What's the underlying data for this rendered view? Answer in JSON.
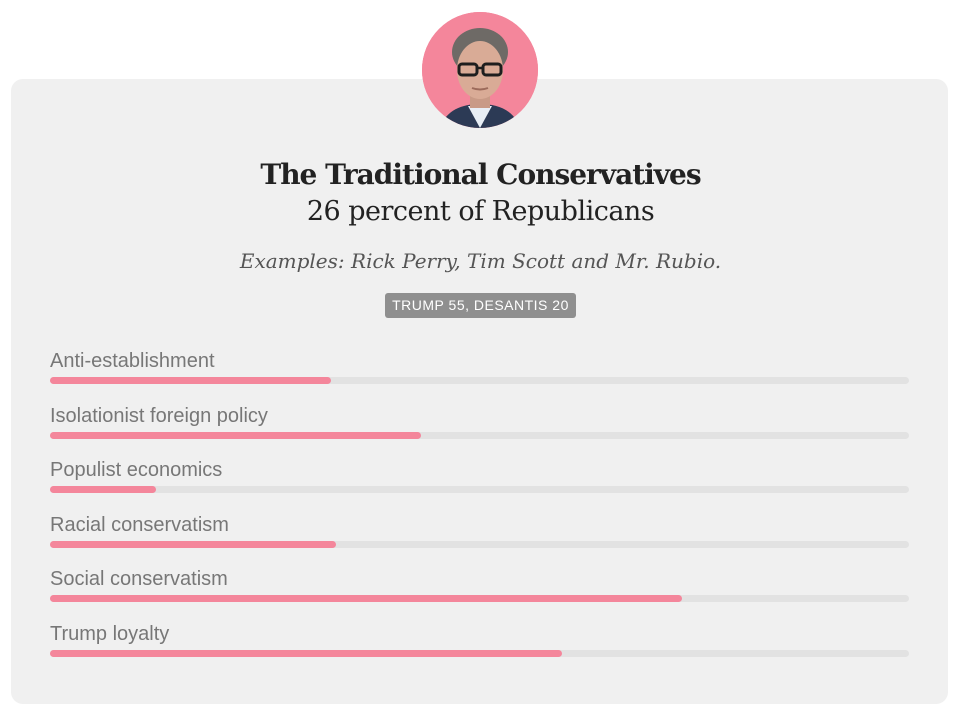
{
  "group": {
    "title": "The Traditional Conservatives",
    "subtitle": "26 percent of Republicans",
    "examples": "Examples: Rick Perry, Tim Scott and Mr. Rubio.",
    "badge": "TRUMP 55, DESANTIS 20"
  },
  "colors": {
    "accent": "#f4869b",
    "track": "#e2e2e2",
    "card": "#f0f0f0",
    "badge": "#8f8f8f"
  },
  "chart_data": {
    "type": "bar",
    "orientation": "horizontal",
    "categories": [
      "Anti-establishment",
      "Isolationist foreign policy",
      "Populist economics",
      "Racial conservatism",
      "Social conservatism",
      "Trump loyalty"
    ],
    "values": [
      0.327,
      0.432,
      0.123,
      0.333,
      0.736,
      0.596
    ],
    "xlim": [
      0,
      1
    ]
  }
}
